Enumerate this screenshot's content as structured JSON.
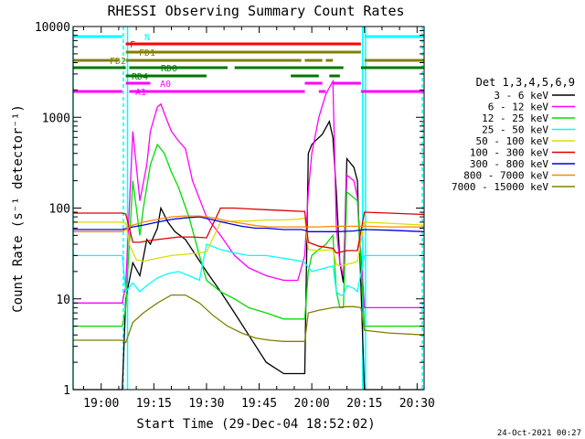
{
  "chart_data": {
    "type": "line",
    "title": "RHESSI Observing Summary Count Rates",
    "xlabel": "Start Time (29-Dec-04 18:52:02)",
    "ylabel": "Count Rate (s⁻¹ detector⁻¹)",
    "yscale": "log",
    "ylim": [
      1,
      10000
    ],
    "xlim_minutes_after_start": [
      0,
      100
    ],
    "x_ticks": [
      {
        "label": "19:00",
        "m": 8
      },
      {
        "label": "19:15",
        "m": 23
      },
      {
        "label": "19:30",
        "m": 38
      },
      {
        "label": "19:45",
        "m": 53
      },
      {
        "label": "20:00",
        "m": 68
      },
      {
        "label": "20:15",
        "m": 83
      },
      {
        "label": "20:30",
        "m": 98
      }
    ],
    "y_ticks": [
      {
        "label": "1",
        "v": 1
      },
      {
        "label": "10",
        "v": 10
      },
      {
        "label": "100",
        "v": 100
      },
      {
        "label": "1000",
        "v": 1000
      },
      {
        "label": "10000",
        "v": 10000
      }
    ],
    "legend_title": "Det 1,3,4,5,6,9",
    "legend_position": "right",
    "timestamp": "24-Oct-2021 00:27",
    "flag_labels": [
      "N",
      "F",
      "FD1",
      "FD2",
      "RDO",
      "RD4",
      "A0",
      "A1"
    ],
    "series": [
      {
        "name": "3 - 6 keV",
        "color": "#000000",
        "x": [
          0,
          8,
          14,
          15,
          17,
          19,
          21,
          22,
          24,
          25,
          27,
          29,
          32,
          35,
          38,
          42,
          46,
          50,
          55,
          60,
          66,
          67,
          68,
          69,
          71,
          73,
          74,
          75,
          76,
          77,
          78,
          80,
          81,
          83,
          90,
          100
        ],
        "y": [
          1,
          1,
          1,
          10,
          25,
          18,
          45,
          40,
          60,
          100,
          70,
          55,
          45,
          30,
          20,
          12,
          7,
          4,
          2,
          1.5,
          1.5,
          400,
          500,
          550,
          650,
          900,
          600,
          150,
          25,
          15,
          350,
          280,
          200,
          1,
          1,
          1
        ]
      },
      {
        "name": "6 - 12 keV",
        "color": "#ff00ff",
        "x": [
          0,
          14,
          15,
          17,
          19,
          21,
          22,
          24,
          25,
          26,
          28,
          30,
          32,
          34,
          38,
          42,
          46,
          50,
          55,
          60,
          64,
          66,
          67,
          68,
          70,
          72,
          74,
          75,
          76,
          77,
          78,
          80,
          81,
          83,
          90,
          100
        ],
        "y": [
          9,
          9,
          14,
          700,
          120,
          300,
          700,
          1300,
          1400,
          1100,
          700,
          550,
          450,
          200,
          80,
          50,
          30,
          22,
          18,
          16,
          16,
          30,
          150,
          400,
          1000,
          1800,
          2500,
          60,
          25,
          18,
          230,
          200,
          130,
          8,
          8,
          8
        ]
      },
      {
        "name": "12 - 25 keV",
        "color": "#00dd00",
        "x": [
          0,
          14,
          15,
          17,
          19,
          20,
          22,
          24,
          26,
          28,
          30,
          33,
          36,
          38,
          42,
          46,
          50,
          55,
          60,
          65,
          66,
          67,
          68,
          70,
          72,
          74,
          75,
          76,
          77,
          78,
          80,
          81,
          83,
          90,
          100
        ],
        "y": [
          5,
          5,
          8,
          200,
          50,
          100,
          300,
          500,
          400,
          250,
          170,
          80,
          30,
          16,
          12,
          10,
          8,
          7,
          6,
          6,
          6,
          20,
          30,
          35,
          40,
          50,
          12,
          8,
          8,
          150,
          130,
          120,
          5,
          5,
          5
        ]
      },
      {
        "name": "25 - 50 keV",
        "color": "#00ffff",
        "x": [
          0,
          14,
          15,
          17,
          19,
          21,
          24,
          27,
          30,
          33,
          36,
          38,
          42,
          46,
          50,
          55,
          60,
          65,
          66,
          68,
          72,
          74,
          75,
          76,
          77,
          78,
          80,
          81,
          83,
          90,
          100
        ],
        "y": [
          30,
          30,
          12,
          15,
          12,
          14,
          17,
          19,
          20,
          18,
          16,
          40,
          35,
          32,
          30,
          30,
          28,
          26,
          25,
          20,
          22,
          23,
          12,
          11,
          11,
          14,
          13,
          12,
          30,
          30,
          30
        ]
      },
      {
        "name": "50 - 100 keV",
        "color": "#dddd00",
        "x": [
          0,
          14,
          15,
          16,
          18,
          20,
          24,
          28,
          32,
          36,
          38,
          42,
          46,
          50,
          55,
          60,
          65,
          66,
          67,
          70,
          74,
          75,
          76,
          78,
          80,
          81,
          83,
          90,
          100
        ],
        "y": [
          70,
          70,
          68,
          40,
          27,
          26,
          28,
          30,
          31,
          32,
          33,
          70,
          72,
          72,
          74,
          74,
          76,
          78,
          35,
          34,
          35,
          24,
          23,
          24,
          25,
          26,
          70,
          68,
          65
        ]
      },
      {
        "name": "100 - 300 keV",
        "color": "#dd0000",
        "x": [
          0,
          14,
          15,
          17,
          19,
          22,
          26,
          30,
          34,
          38,
          42,
          46,
          50,
          55,
          60,
          65,
          66,
          67,
          70,
          74,
          75,
          78,
          80,
          81,
          83,
          90,
          100
        ],
        "y": [
          88,
          88,
          86,
          42,
          42,
          44,
          46,
          48,
          48,
          47,
          100,
          100,
          98,
          96,
          94,
          92,
          92,
          42,
          38,
          36,
          32,
          34,
          34,
          34,
          90,
          88,
          85
        ]
      },
      {
        "name": "300 - 800 keV",
        "color": "#0000dd",
        "x": [
          0,
          14,
          17,
          20,
          24,
          28,
          32,
          36,
          40,
          44,
          48,
          52,
          55,
          60,
          65,
          66,
          67,
          70,
          75,
          80,
          83,
          90,
          100
        ],
        "y": [
          58,
          58,
          62,
          65,
          70,
          75,
          78,
          80,
          74,
          68,
          63,
          60,
          60,
          58,
          58,
          57,
          55,
          55,
          55,
          56,
          58,
          57,
          55
        ]
      },
      {
        "name": "800 - 7000 keV",
        "color": "#ff8800",
        "x": [
          0,
          14,
          17,
          20,
          24,
          28,
          32,
          36,
          40,
          44,
          48,
          52,
          56,
          60,
          65,
          70,
          75,
          80,
          83,
          90,
          100
        ],
        "y": [
          55,
          55,
          65,
          70,
          75,
          80,
          82,
          82,
          78,
          72,
          68,
          64,
          62,
          62,
          62,
          62,
          63,
          63,
          63,
          62,
          62
        ]
      },
      {
        "name": "7000 - 15000 keV",
        "color": "#808000",
        "x": [
          0,
          14,
          15,
          17,
          20,
          24,
          28,
          32,
          36,
          40,
          44,
          48,
          52,
          56,
          60,
          64,
          66,
          67,
          70,
          74,
          78,
          80,
          82,
          83,
          90,
          100
        ],
        "y": [
          3.5,
          3.5,
          3.3,
          5.5,
          7,
          9,
          11,
          11,
          9,
          6.5,
          5,
          4.2,
          3.7,
          3.5,
          3.4,
          3.4,
          3.4,
          7,
          7.5,
          8,
          8.2,
          8.2,
          8,
          4.5,
          4.2,
          4
        ]
      }
    ],
    "flags": [
      {
        "label": "N",
        "color": "#00ffff",
        "y": 40,
        "spans": [
          [
            0,
            14
          ],
          [
            83,
            100
          ]
        ]
      },
      {
        "label": "F",
        "color": "#ff0000",
        "y": 48,
        "spans": [
          [
            15,
            82
          ]
        ]
      },
      {
        "label": "FD1",
        "color": "#808000",
        "y": 57,
        "spans": [
          [
            15,
            82
          ]
        ]
      },
      {
        "label": "FD2",
        "color": "#808000",
        "y": 66,
        "spans": [
          [
            0,
            13
          ],
          [
            15,
            65
          ],
          [
            66,
            71
          ],
          [
            72,
            74
          ],
          [
            83,
            100
          ]
        ]
      },
      {
        "label": "RDO",
        "color": "#007700",
        "y": 74,
        "spans": [
          [
            0,
            15
          ],
          [
            16,
            44
          ],
          [
            46,
            77
          ],
          [
            82,
            100
          ]
        ]
      },
      {
        "label": "RD4",
        "color": "#007700",
        "y": 83,
        "spans": [
          [
            15,
            38
          ],
          [
            62,
            70
          ],
          [
            73,
            76
          ]
        ]
      },
      {
        "label": "A0",
        "color": "#ff00ff",
        "y": 91,
        "spans": [
          [
            15,
            22
          ],
          [
            66,
            71
          ],
          [
            74,
            82
          ]
        ]
      },
      {
        "label": "A1",
        "color": "#ff00ff",
        "y": 100,
        "spans": [
          [
            0,
            14
          ],
          [
            16,
            66
          ],
          [
            70,
            72
          ],
          [
            82,
            100
          ]
        ]
      }
    ],
    "vlines": [
      {
        "m": 0,
        "color": "#00ffff",
        "dashed": false
      },
      {
        "m": 14.3,
        "color": "#00ffff",
        "dashed": true
      },
      {
        "m": 15.5,
        "color": "#00ffff",
        "dashed": false
      },
      {
        "m": 82.5,
        "color": "#00ffff",
        "dashed": false
      },
      {
        "m": 83.3,
        "color": "#00ffff",
        "dashed": false
      },
      {
        "m": 99.5,
        "color": "#00ffff",
        "dashed": true
      }
    ]
  }
}
